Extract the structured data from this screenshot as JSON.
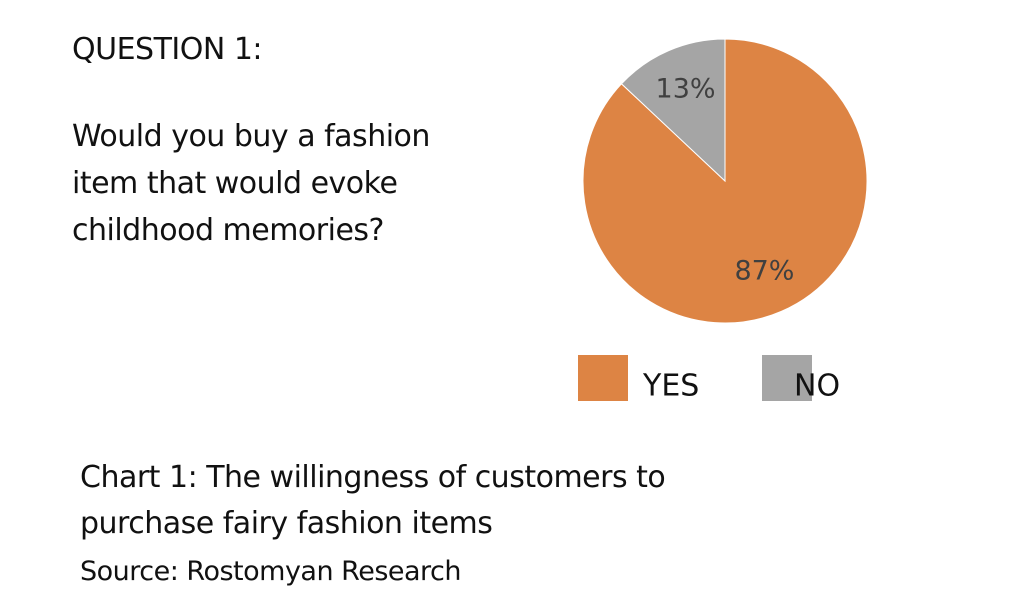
{
  "chart_data": {
    "type": "pie",
    "heading": "QUESTION 1:",
    "question": "Would you buy a fashion item that would evoke childhood memories?",
    "caption": "Chart 1: The willingness of customers to purchase fairy fashion items",
    "source": "Source: Rostomyan Research",
    "categories": [
      "YES",
      "NO"
    ],
    "values": [
      87,
      13
    ],
    "value_labels": [
      "87%",
      "13%"
    ],
    "colors": [
      "#dd8444",
      "#a5a5a5"
    ]
  }
}
